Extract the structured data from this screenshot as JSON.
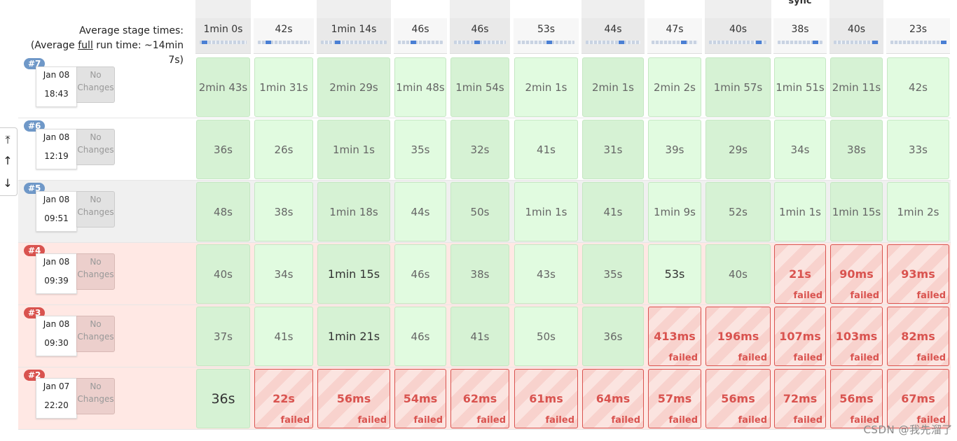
{
  "header": {
    "stage_names": [
      "",
      "",
      "",
      "",
      "",
      "",
      "",
      "",
      "",
      "sync",
      "",
      ""
    ],
    "avg_label_1": "Average stage times:",
    "avg_label_2a": "(Average ",
    "avg_label_2u": "full",
    "avg_label_2b": " run time: ~14min",
    "avg_label_3": "7s)",
    "avg_times": [
      "1min 0s",
      "42s",
      "1min 14s",
      "46s",
      "46s",
      "53s",
      "44s",
      "47s",
      "40s",
      "38s",
      "40s",
      "23s"
    ],
    "avg_progress_percent": [
      10,
      20,
      25,
      35,
      45,
      55,
      65,
      70,
      85,
      85,
      90,
      96
    ]
  },
  "nav": {
    "top_label": "⤒",
    "up_label": "↑",
    "down_label": "↓"
  },
  "builds": [
    {
      "number": "#7",
      "status": "success",
      "date": "Jan 08",
      "time": "18:43",
      "changes": "No Changes",
      "cells": [
        {
          "value": "2min 43s",
          "status": "ok"
        },
        {
          "value": "1min 31s",
          "status": "ok"
        },
        {
          "value": "2min 29s",
          "status": "ok"
        },
        {
          "value": "1min 48s",
          "status": "ok"
        },
        {
          "value": "1min 54s",
          "status": "ok"
        },
        {
          "value": "2min 1s",
          "status": "ok"
        },
        {
          "value": "2min 1s",
          "status": "ok"
        },
        {
          "value": "2min 2s",
          "status": "ok"
        },
        {
          "value": "1min 57s",
          "status": "ok"
        },
        {
          "value": "1min 51s",
          "status": "ok"
        },
        {
          "value": "2min 11s",
          "status": "ok"
        },
        {
          "value": "42s",
          "status": "ok"
        }
      ]
    },
    {
      "number": "#6",
      "status": "success",
      "date": "Jan 08",
      "time": "12:19",
      "changes": "No Changes",
      "cells": [
        {
          "value": "36s",
          "status": "ok"
        },
        {
          "value": "26s",
          "status": "ok"
        },
        {
          "value": "1min 1s",
          "status": "ok"
        },
        {
          "value": "35s",
          "status": "ok"
        },
        {
          "value": "32s",
          "status": "ok"
        },
        {
          "value": "41s",
          "status": "ok"
        },
        {
          "value": "31s",
          "status": "ok"
        },
        {
          "value": "39s",
          "status": "ok"
        },
        {
          "value": "29s",
          "status": "ok"
        },
        {
          "value": "34s",
          "status": "ok"
        },
        {
          "value": "38s",
          "status": "ok"
        },
        {
          "value": "33s",
          "status": "ok"
        }
      ]
    },
    {
      "number": "#5",
      "status": "success",
      "date": "Jan 08",
      "time": "09:51",
      "changes": "No Changes",
      "cells": [
        {
          "value": "48s",
          "status": "ok"
        },
        {
          "value": "38s",
          "status": "ok"
        },
        {
          "value": "1min 18s",
          "status": "ok"
        },
        {
          "value": "44s",
          "status": "ok"
        },
        {
          "value": "50s",
          "status": "ok"
        },
        {
          "value": "1min 1s",
          "status": "ok"
        },
        {
          "value": "41s",
          "status": "ok"
        },
        {
          "value": "1min 9s",
          "status": "ok"
        },
        {
          "value": "52s",
          "status": "ok"
        },
        {
          "value": "1min 1s",
          "status": "ok"
        },
        {
          "value": "1min 15s",
          "status": "ok"
        },
        {
          "value": "1min 2s",
          "status": "ok"
        }
      ]
    },
    {
      "number": "#4",
      "status": "failed",
      "date": "Jan 08",
      "time": "09:39",
      "changes": "No Changes",
      "cells": [
        {
          "value": "40s",
          "status": "ok"
        },
        {
          "value": "34s",
          "status": "ok"
        },
        {
          "value": "1min 15s",
          "status": "ok"
        },
        {
          "value": "46s",
          "status": "ok"
        },
        {
          "value": "38s",
          "status": "ok"
        },
        {
          "value": "43s",
          "status": "ok"
        },
        {
          "value": "35s",
          "status": "ok"
        },
        {
          "value": "53s",
          "status": "ok"
        },
        {
          "value": "40s",
          "status": "ok"
        },
        {
          "value": "21s",
          "status": "failed"
        },
        {
          "value": "90ms",
          "status": "failed"
        },
        {
          "value": "93ms",
          "status": "failed"
        }
      ]
    },
    {
      "number": "#3",
      "status": "failed",
      "date": "Jan 08",
      "time": "09:30",
      "changes": "No Changes",
      "cells": [
        {
          "value": "37s",
          "status": "ok"
        },
        {
          "value": "41s",
          "status": "ok"
        },
        {
          "value": "1min 21s",
          "status": "ok"
        },
        {
          "value": "46s",
          "status": "ok"
        },
        {
          "value": "41s",
          "status": "ok"
        },
        {
          "value": "50s",
          "status": "ok"
        },
        {
          "value": "36s",
          "status": "ok"
        },
        {
          "value": "413ms",
          "status": "failed"
        },
        {
          "value": "196ms",
          "status": "failed"
        },
        {
          "value": "107ms",
          "status": "failed"
        },
        {
          "value": "103ms",
          "status": "failed"
        },
        {
          "value": "82ms",
          "status": "failed"
        }
      ]
    },
    {
      "number": "#2",
      "status": "failed",
      "date": "Jan 07",
      "time": "22:20",
      "changes": "No Changes",
      "cells": [
        {
          "value": "36s",
          "status": "ok"
        },
        {
          "value": "22s",
          "status": "failed"
        },
        {
          "value": "56ms",
          "status": "failed"
        },
        {
          "value": "54ms",
          "status": "failed"
        },
        {
          "value": "62ms",
          "status": "failed"
        },
        {
          "value": "61ms",
          "status": "failed"
        },
        {
          "value": "64ms",
          "status": "failed"
        },
        {
          "value": "57ms",
          "status": "failed"
        },
        {
          "value": "56ms",
          "status": "failed"
        },
        {
          "value": "72ms",
          "status": "failed"
        },
        {
          "value": "56ms",
          "status": "failed"
        },
        {
          "value": "67ms",
          "status": "failed"
        }
      ]
    }
  ],
  "failed_label": "failed",
  "watermark": "CSDN @我先溜了"
}
